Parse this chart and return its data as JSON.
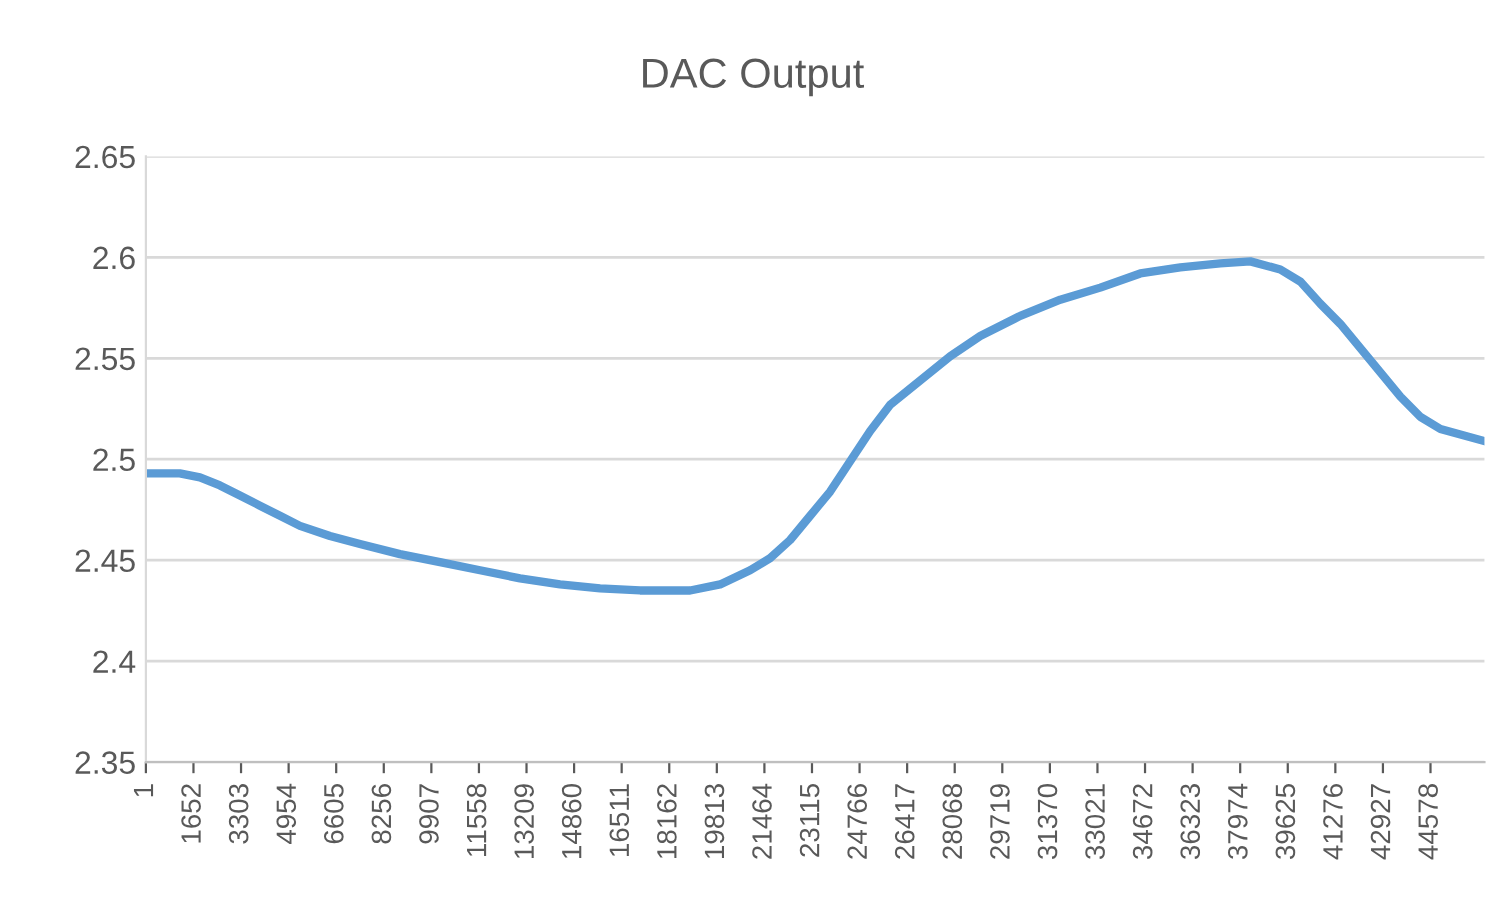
{
  "chart_data": {
    "type": "line",
    "title": "DAC Output",
    "x": [
      1,
      1180,
      1876,
      2570,
      3264,
      3958,
      4653,
      5347,
      6389,
      7430,
      8818,
      10207,
      11596,
      12984,
      14373,
      15761,
      17150,
      18886,
      19927,
      20968,
      21663,
      22357,
      23052,
      23746,
      24440,
      25135,
      25829,
      26870,
      27912,
      28953,
      30342,
      31730,
      33119,
      34507,
      35896,
      37284,
      38326,
      39367,
      40061,
      40756,
      41450,
      42144,
      42839,
      43533,
      44227,
      44922,
      46449
    ],
    "series": [
      {
        "color": "#5b9bd5",
        "values": [
          2.493,
          2.493,
          2.491,
          2.487,
          2.482,
          2.477,
          2.472,
          2.467,
          2.462,
          2.458,
          2.453,
          2.449,
          2.445,
          2.441,
          2.438,
          2.436,
          2.435,
          2.435,
          2.438,
          2.445,
          2.451,
          2.46,
          2.472,
          2.484,
          2.499,
          2.514,
          2.527,
          2.539,
          2.551,
          2.561,
          2.571,
          2.579,
          2.585,
          2.592,
          2.595,
          2.597,
          2.598,
          2.594,
          2.588,
          2.577,
          2.567,
          2.555,
          2.543,
          2.531,
          2.521,
          2.515,
          2.509
        ]
      }
    ],
    "xlim": [
      1,
      46450
    ],
    "xticks": [
      1,
      1652,
      3303,
      4954,
      6605,
      8256,
      9907,
      11558,
      13209,
      14860,
      16511,
      18162,
      19813,
      21464,
      23115,
      24766,
      26417,
      28068,
      29719,
      31370,
      33021,
      34672,
      36323,
      37974,
      39625,
      41276,
      42927,
      44578
    ],
    "ylim": [
      2.35,
      2.65
    ],
    "yticks": [
      2.35,
      2.4,
      2.45,
      2.5,
      2.55,
      2.6,
      2.65
    ],
    "grid": "y",
    "legend": false,
    "marker": "none",
    "line_style": "solid"
  }
}
